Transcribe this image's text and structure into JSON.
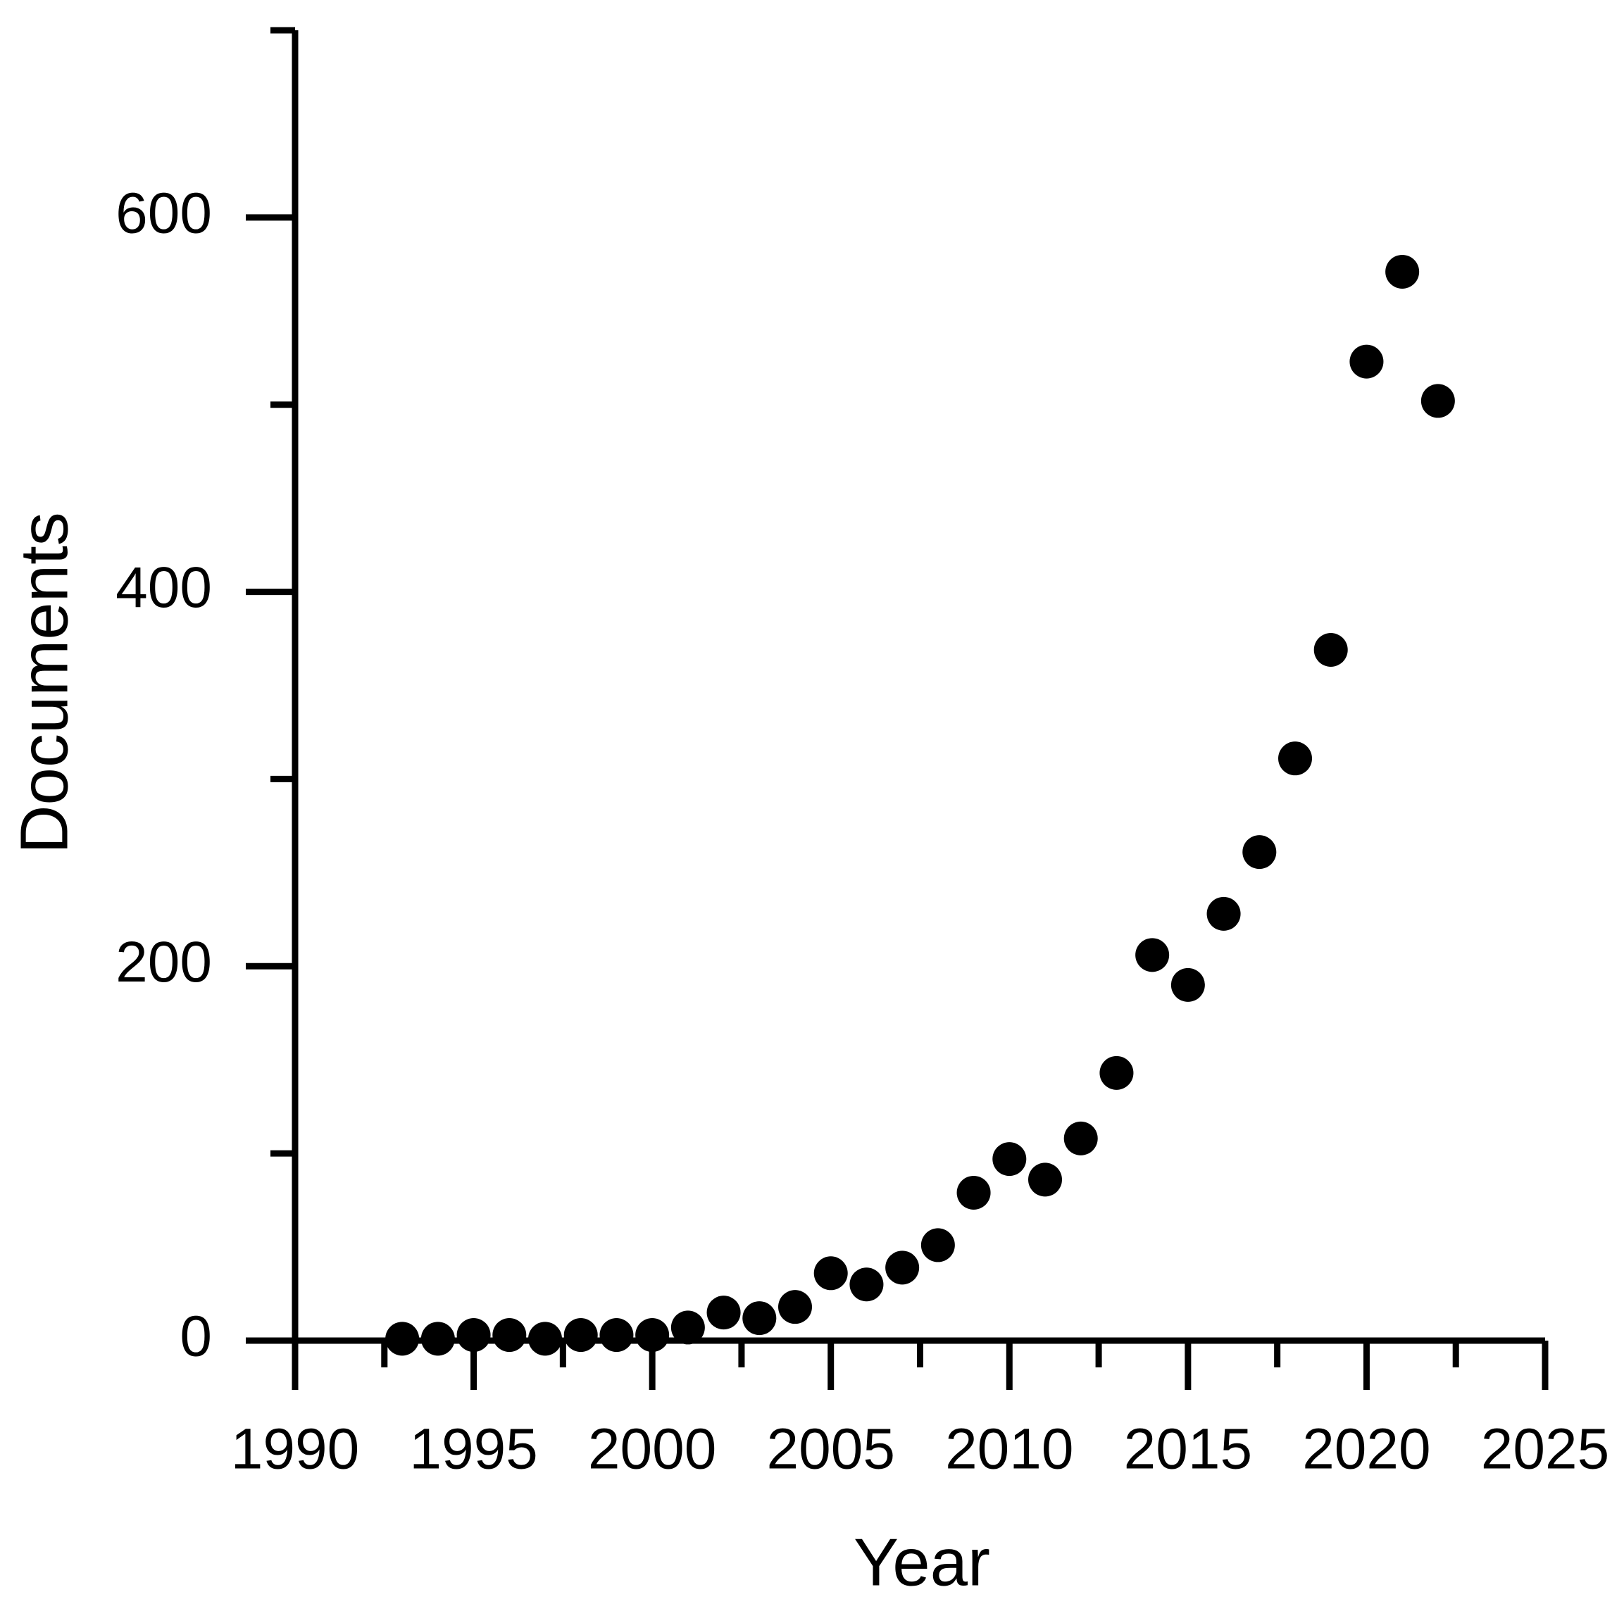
{
  "chart_data": {
    "type": "scatter",
    "x_label": "Year",
    "y_label": "Documents",
    "x": [
      1993,
      1994,
      1995,
      1996,
      1997,
      1998,
      1999,
      2000,
      2001,
      2002,
      2003,
      2004,
      2005,
      2006,
      2007,
      2008,
      2009,
      2010,
      2011,
      2012,
      2013,
      2014,
      2015,
      2016,
      2017,
      2018,
      2019,
      2020,
      2021,
      2022
    ],
    "values": [
      1,
      1,
      3,
      3,
      1,
      3,
      3,
      3,
      7,
      15,
      12,
      18,
      36,
      30,
      39,
      51,
      79,
      97,
      86,
      108,
      143,
      206,
      190,
      228,
      261,
      311,
      369,
      523,
      571,
      502
    ],
    "color": "#000000",
    "xlim": [
      1990,
      2025
    ],
    "xticks": [
      1990,
      1995,
      2000,
      2005,
      2010,
      2015,
      2020,
      2025
    ],
    "xminorticks": [
      1992.5,
      1997.5,
      2002.5,
      2007.5,
      2012.5,
      2017.5,
      2022.5
    ],
    "ylim": [
      0,
      700
    ],
    "yticks": [
      0,
      200,
      400,
      600
    ],
    "yminorticks": [
      100,
      300,
      500,
      700
    ],
    "grid": false
  }
}
